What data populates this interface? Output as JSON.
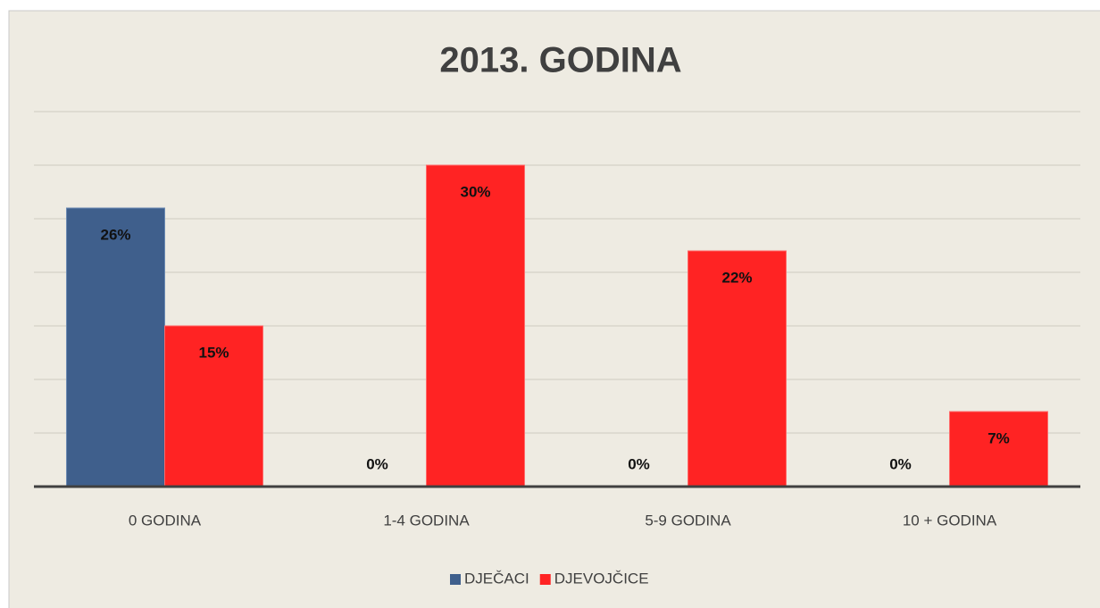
{
  "chart_data": {
    "type": "bar",
    "title": "2013. GODINA",
    "categories": [
      "0 GODINA",
      "1-4 GODINA",
      "5-9 GODINA",
      "10 + GODINA"
    ],
    "series": [
      {
        "name": "DJEČACI",
        "color": "#3f5f8c",
        "values": [
          26,
          0,
          0,
          0
        ],
        "value_labels": [
          "26%",
          "0%",
          "0%",
          "0%"
        ]
      },
      {
        "name": "DJEVOJČICE",
        "color": "#ff2323",
        "values": [
          15,
          30,
          22,
          7
        ],
        "value_labels": [
          "15%",
          "30%",
          "22%",
          "7%"
        ]
      }
    ],
    "ylim": [
      0,
      35
    ],
    "yticks": [
      0,
      5,
      10,
      15,
      20,
      25,
      30,
      35
    ],
    "grid": true,
    "legend": "bottom"
  }
}
